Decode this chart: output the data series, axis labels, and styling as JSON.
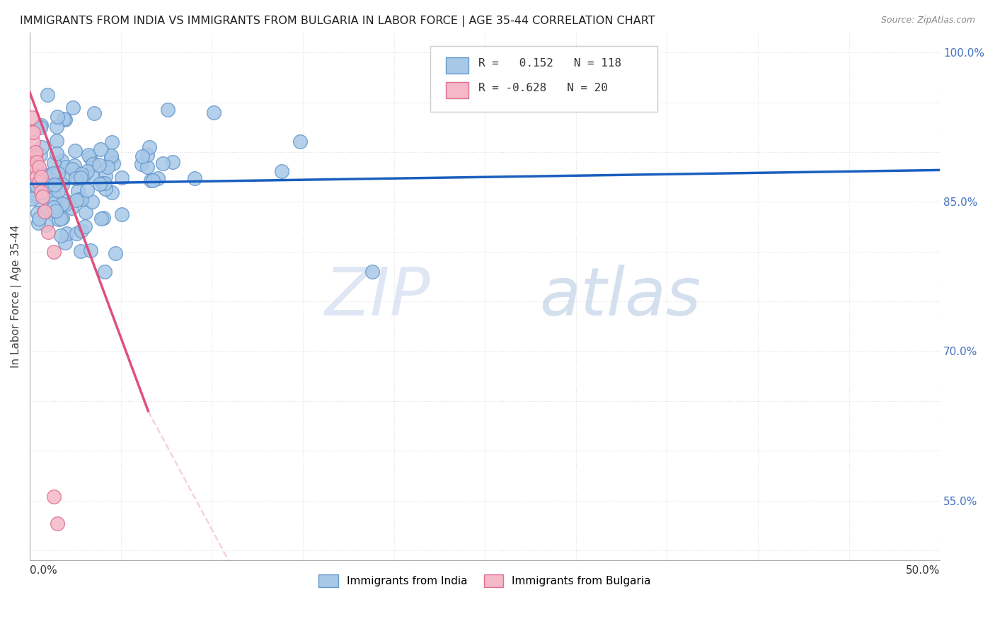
{
  "title": "IMMIGRANTS FROM INDIA VS IMMIGRANTS FROM BULGARIA IN LABOR FORCE | AGE 35-44 CORRELATION CHART",
  "source": "Source: ZipAtlas.com",
  "ylabel": "In Labor Force | Age 35-44",
  "xlim": [
    0.0,
    0.5
  ],
  "ylim": [
    0.49,
    1.02
  ],
  "ytick_positions": [
    0.55,
    0.7,
    0.85,
    1.0
  ],
  "ytick_labels": [
    "55.0%",
    "70.0%",
    "85.0%",
    "100.0%"
  ],
  "india_R": 0.152,
  "india_N": 118,
  "bulgaria_R": -0.628,
  "bulgaria_N": 20,
  "india_color": "#a8c8e8",
  "india_edge": "#6699cc",
  "bulgaria_color": "#f4b8c8",
  "bulgaria_edge": "#e07090",
  "india_line_color": "#1a5fbf",
  "bulgaria_line_solid_color": "#e0507a",
  "bulgaria_line_dash_color": "#e0b0c0",
  "watermark_zip": "ZIP",
  "watermark_atlas": "atlas",
  "watermark_color": "#dce8f5",
  "grid_color": "#e0e0e0",
  "grid_style": ":"
}
